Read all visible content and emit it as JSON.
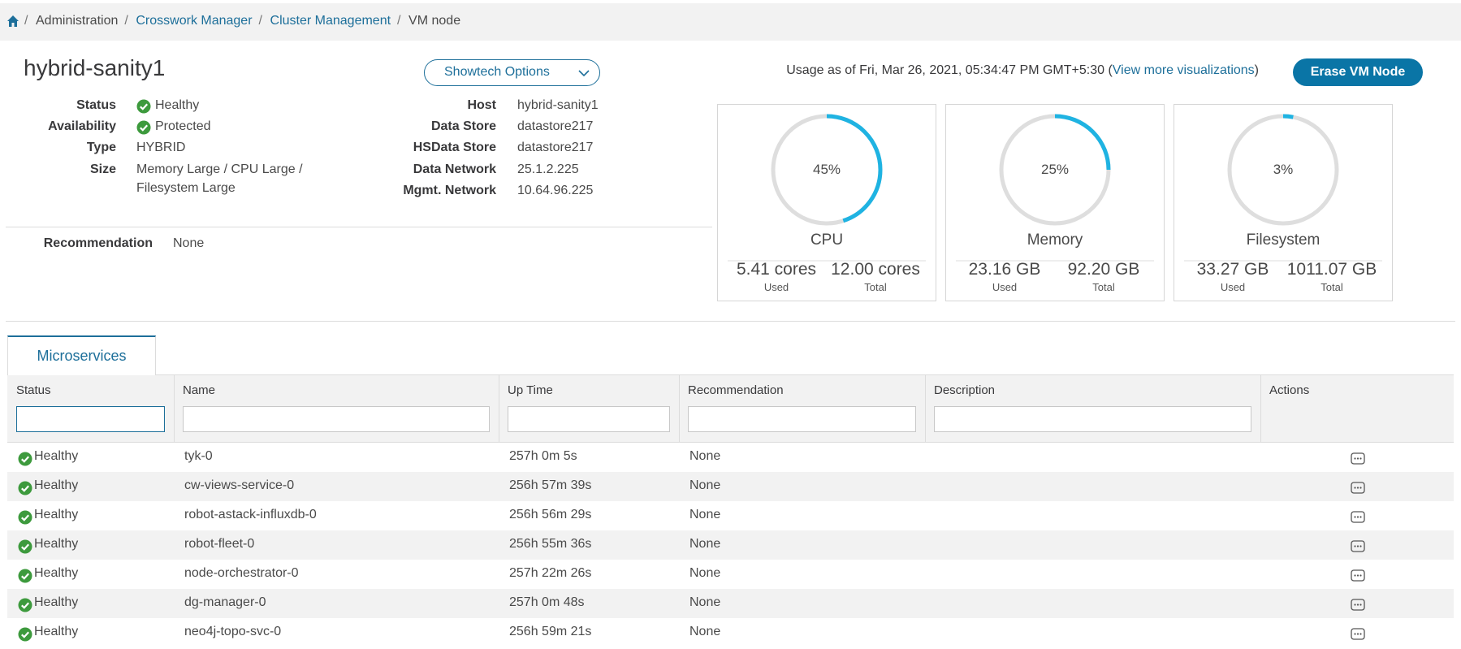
{
  "breadcrumb": [
    "Administration",
    "Crosswork Manager",
    "Cluster Management",
    "VM node"
  ],
  "header": {
    "title": "hybrid-sanity1",
    "showtech": "Showtech Options",
    "usage_prefix": "Usage as of Fri, Mar 26, 2021, 05:34:47 PM GMT+5:30 (",
    "usage_link": "View more visualizations",
    "usage_suffix": ")",
    "erase_button": "Erase VM Node"
  },
  "details_left": [
    {
      "label": "Status",
      "value": "Healthy"
    },
    {
      "label": "Availability",
      "value": "Protected"
    },
    {
      "label": "Type",
      "value": "HYBRID"
    },
    {
      "label": "Size",
      "value": "Memory Large / CPU Large /",
      "value2": "Filesystem Large"
    }
  ],
  "details_right": [
    {
      "label": "Host",
      "value": "hybrid-sanity1"
    },
    {
      "label": "Data Store",
      "value": "datastore217"
    },
    {
      "label": "HSData Store",
      "value": "datastore217"
    },
    {
      "label": "Data Network",
      "value": "25.1.2.225"
    },
    {
      "label": "Mgmt. Network",
      "value": "10.64.96.225"
    }
  ],
  "recommendation": {
    "label": "Recommendation",
    "value": "None"
  },
  "gauges": [
    {
      "name": "CPU",
      "value": 45,
      "value_label": "45%",
      "used": "5.41 cores",
      "used_label": "Used",
      "total": "12.00 cores",
      "total_label": "Total"
    },
    {
      "name": "Memory",
      "value": 25,
      "value_label": "25%",
      "used": "23.16 GB",
      "used_label": "Used",
      "total": "92.20 GB",
      "total_label": "Total"
    },
    {
      "name": "Filesystem",
      "value": 3,
      "value_label": "3%",
      "used": "33.27 GB",
      "used_label": "Used",
      "total": "1011.07 GB",
      "total_label": "Total"
    }
  ],
  "tab": "Microservices",
  "table": {
    "columns": [
      "Status",
      "Name",
      "Up Time",
      "Recommendation",
      "Description",
      "Actions"
    ],
    "rows": [
      [
        "Healthy",
        "tyk-0",
        "257h 0m 5s",
        "None"
      ],
      [
        "Healthy",
        "cw-views-service-0",
        "256h 57m 39s",
        "None"
      ],
      [
        "Healthy",
        "robot-astack-influxdb-0",
        "256h 56m 29s",
        "None"
      ],
      [
        "Healthy",
        "robot-fleet-0",
        "256h 55m 36s",
        "None"
      ],
      [
        "Healthy",
        "node-orchestrator-0",
        "257h 22m 26s",
        "None"
      ],
      [
        "Healthy",
        "dg-manager-0",
        "257h 0m 48s",
        "None"
      ],
      [
        "Healthy",
        "neo4j-topo-svc-0",
        "256h 59m 21s",
        "None"
      ]
    ]
  }
}
